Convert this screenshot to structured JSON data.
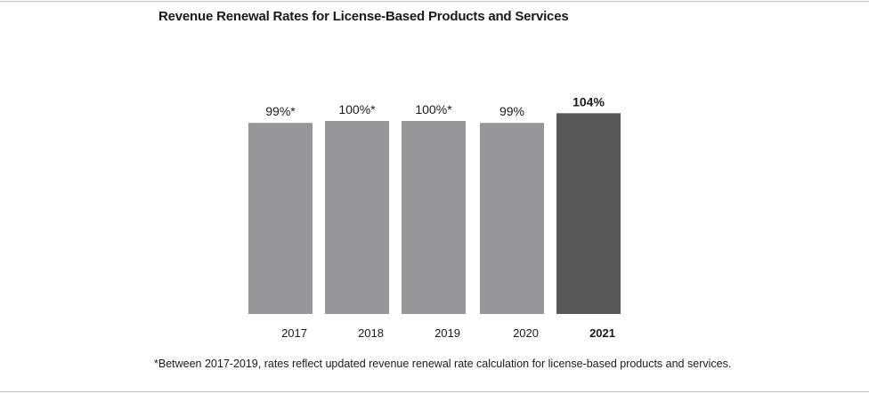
{
  "chart_data": {
    "type": "bar",
    "title": "Revenue Renewal Rates for License-Based Products and Services",
    "categories": [
      "2017",
      "2018",
      "2019",
      "2020",
      "2021"
    ],
    "values": [
      99,
      100,
      100,
      99,
      104
    ],
    "data_labels": [
      "99%*",
      "100%*",
      "100%*",
      "99%",
      "104%"
    ],
    "highlighted_category": "2021",
    "xlabel": "",
    "ylabel": "",
    "grid": false,
    "legend": "none",
    "colors": {
      "default": "#959699",
      "highlight": "#58585a"
    },
    "footnote": "*Between 2017-2019, rates reflect updated revenue renewal rate calculation for license-based products and services."
  }
}
